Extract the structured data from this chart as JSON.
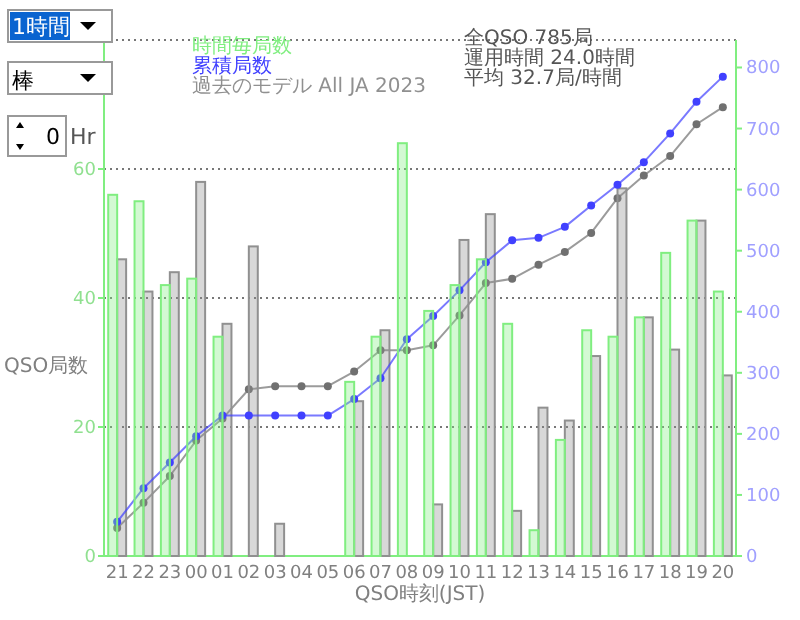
{
  "chart_data": {
    "type": "bar",
    "xlabel": "QSO時刻(JST)",
    "ylabel": "QSO局数",
    "categories": [
      "21",
      "22",
      "23",
      "00",
      "01",
      "02",
      "03",
      "04",
      "05",
      "06",
      "07",
      "08",
      "09",
      "10",
      "11",
      "12",
      "13",
      "14",
      "15",
      "16",
      "17",
      "18",
      "19",
      "20"
    ],
    "series": [
      {
        "name": "時間毎局数",
        "color": "#80ee80",
        "values": [
          56,
          55,
          42,
          43,
          34,
          0,
          0,
          0,
          0,
          27,
          34,
          64,
          38,
          42,
          46,
          36,
          4,
          18,
          35,
          34,
          37,
          47,
          52,
          41
        ]
      },
      {
        "name": "累積局数",
        "type": "line",
        "axis": "y2",
        "color": "#4040ff",
        "values": [
          56,
          111,
          153,
          196,
          230,
          230,
          230,
          230,
          230,
          257,
          291,
          355,
          393,
          435,
          481,
          517,
          521,
          539,
          574,
          608,
          645,
          692,
          744,
          785
        ]
      },
      {
        "name": "過去のモデル All JA 2023",
        "color": "#909090",
        "values": [
          46,
          41,
          44,
          58,
          36,
          48,
          5,
          0,
          0,
          24,
          35,
          0,
          8,
          49,
          53,
          7,
          23,
          21,
          31,
          57,
          37,
          32,
          52,
          28
        ]
      },
      {
        "type": "line",
        "axis": "y2",
        "color": "#707070",
        "values": [
          46,
          87,
          131,
          189,
          225,
          273,
          278,
          278,
          278,
          302,
          337,
          337,
          345,
          394,
          447,
          454,
          477,
          498,
          529,
          586,
          623,
          655,
          707,
          735
        ]
      }
    ],
    "ylim": [
      0,
      80
    ],
    "yticks": [
      0,
      20,
      40,
      60,
      {
        "value": 80,
        "label": null
      }
    ],
    "y2lim": [
      0,
      845
    ],
    "y2ticks": [
      0,
      100,
      200,
      300,
      400,
      500,
      600,
      700,
      800
    ],
    "grid": "y",
    "legend": "top left",
    "marker": "circle",
    "line_style": "solid",
    "annotations": [
      "1時間",
      "棒",
      "0",
      "Hr",
      "全QSO 785局",
      "運用時間 24.0時間",
      "平均 32.7局/時間"
    ]
  }
}
